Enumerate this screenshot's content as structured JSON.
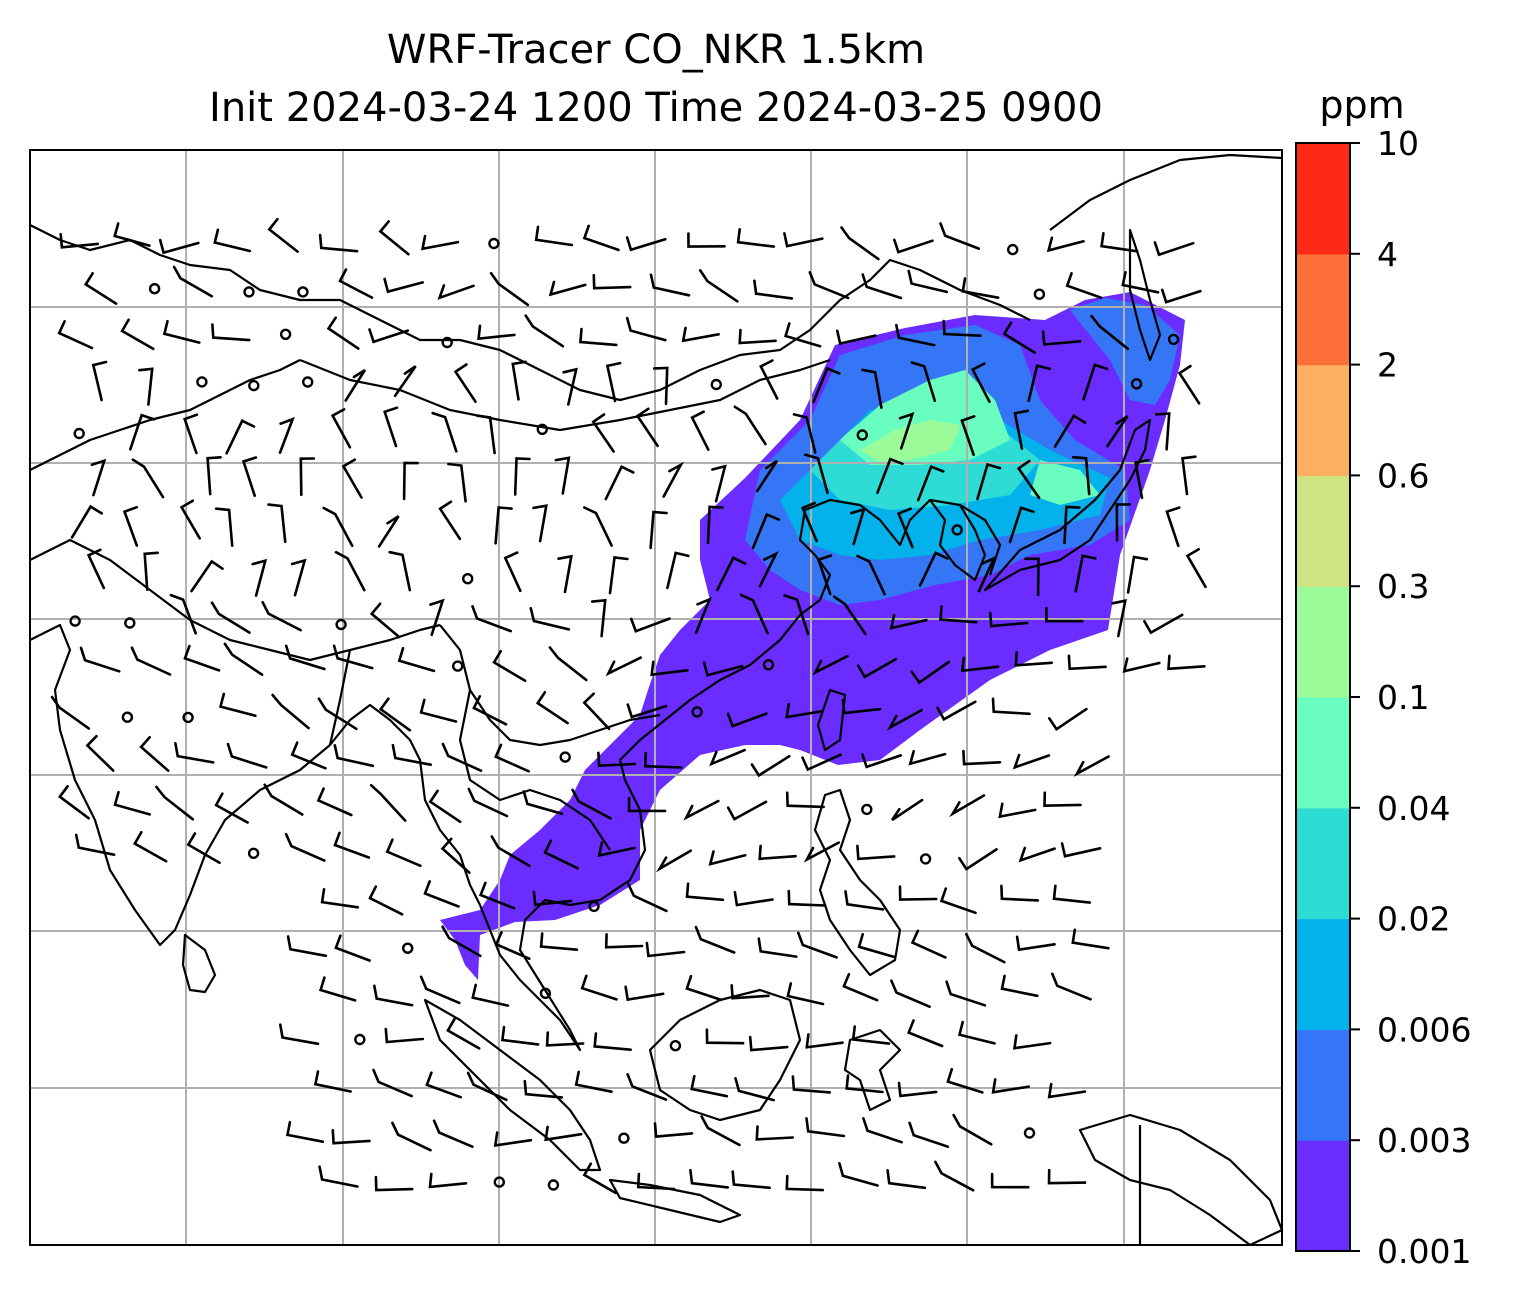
{
  "title": {
    "line1": "WRF-Tracer CO_NKR 1.5km",
    "line2": "Init 2024-03-24 1200 Time 2024-03-25 0900"
  },
  "colorbar": {
    "unit": "ppm",
    "levels": [
      "0.001",
      "0.003",
      "0.006",
      "0.02",
      "0.04",
      "0.1",
      "0.3",
      "0.6",
      "2",
      "4",
      "10"
    ],
    "colors": [
      "#6a2cff",
      "#3476f5",
      "#03b2ea",
      "#2fdcd5",
      "#69fdbf",
      "#9afb98",
      "#d0e382",
      "#fdaf62",
      "#fe7039",
      "#fe2a18"
    ]
  },
  "map": {
    "grid": "on",
    "wind_barbs": "on",
    "colors": {
      "coast": "#000000",
      "grid": "#b0b0b0",
      "barb": "#000000"
    }
  }
}
